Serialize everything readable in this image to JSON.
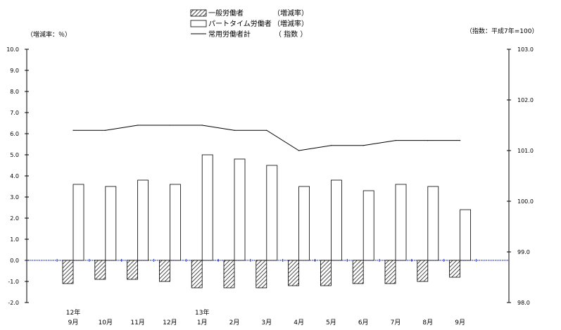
{
  "chart_data": {
    "type": "bar",
    "left_axis_unit": "（増減率：％）",
    "right_axis_unit": "（指数：平成7年=100）",
    "categories": [
      "9月",
      "10月",
      "11月",
      "12月",
      "1月",
      "2月",
      "3月",
      "4月",
      "5月",
      "6月",
      "7月",
      "8月",
      "9月"
    ],
    "year_labels": [
      {
        "index": 0,
        "text": "12年"
      },
      {
        "index": 4,
        "text": "13年"
      }
    ],
    "series": [
      {
        "name": "一般労働者",
        "name_suffix": "（増減率）",
        "type": "bar",
        "style": "hatched",
        "axis": "left",
        "values": [
          -1.1,
          -0.9,
          -0.9,
          -1.0,
          -1.3,
          -1.3,
          -1.3,
          -1.2,
          -1.2,
          -1.1,
          -1.1,
          -1.0,
          -0.8
        ]
      },
      {
        "name": "パートタイム労働者",
        "name_suffix": "（増減率）",
        "type": "bar",
        "style": "white",
        "axis": "left",
        "values": [
          3.6,
          3.5,
          3.8,
          3.6,
          5.0,
          4.8,
          4.5,
          3.5,
          3.8,
          3.3,
          3.6,
          3.5,
          2.4
        ]
      },
      {
        "name": "常用労働者計",
        "name_suffix": "（ 指数 ）",
        "type": "line",
        "axis": "right",
        "values": [
          101.4,
          101.4,
          101.5,
          101.5,
          101.5,
          101.4,
          101.4,
          101.0,
          101.1,
          101.1,
          101.2,
          101.2,
          101.2
        ]
      }
    ],
    "left_axis": {
      "min": -2.0,
      "max": 10.0,
      "step": 1.0,
      "tick_labels": [
        "-2.0",
        "-1.0",
        "0.0",
        "1.0",
        "2.0",
        "3.0",
        "4.0",
        "5.0",
        "6.0",
        "7.0",
        "8.0",
        "9.0",
        "10.0"
      ]
    },
    "right_axis": {
      "min": 98.0,
      "max": 103.0,
      "step": 1.0,
      "tick_labels": [
        "98.0",
        "99.0",
        "100.0",
        "101.0",
        "102.0",
        "103.0"
      ]
    },
    "grid": false,
    "legend_position": "top-center"
  }
}
